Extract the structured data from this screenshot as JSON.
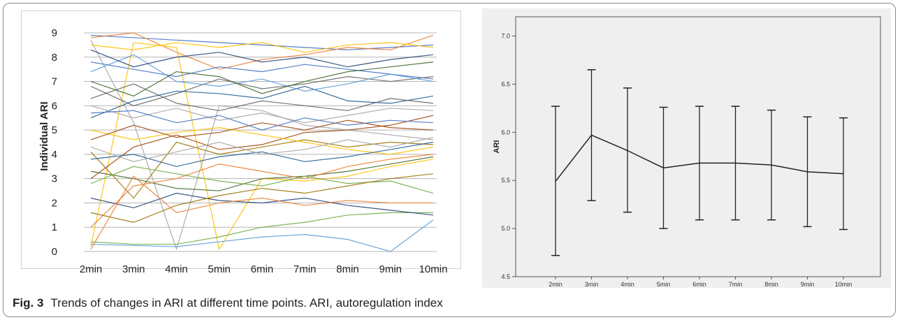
{
  "caption": {
    "label": "Fig. 3",
    "text": "Trends of changes in ARI at different time points. ARI, autoregulation index"
  },
  "chart_data": [
    {
      "type": "line",
      "ylabel": "Individual ARI",
      "xlabel": "",
      "categories": [
        "2min",
        "3min",
        "4min",
        "5min",
        "6min",
        "7min",
        "8min",
        "9min",
        "10min"
      ],
      "ylim": [
        0,
        9
      ],
      "yticks": [
        0,
        1,
        2,
        3,
        4,
        5,
        6,
        7,
        8,
        9
      ],
      "grid": true,
      "legend": "none",
      "colors": [
        "#4472c4",
        "#ed7d31",
        "#a5a5a5",
        "#ffc000",
        "#5b9bd5",
        "#70ad47",
        "#264478",
        "#9e480e",
        "#636363",
        "#997300",
        "#255e91",
        "#43682b"
      ],
      "series": [
        {
          "values": [
            8.9,
            8.8,
            8.7,
            8.6,
            8.5,
            8.4,
            8.3,
            8.4,
            8.5
          ]
        },
        {
          "values": [
            8.8,
            9.0,
            8.2,
            7.5,
            7.9,
            8.1,
            8.4,
            8.3,
            8.9
          ]
        },
        {
          "values": [
            8.7,
            5.3,
            0.1,
            6.0,
            5.8,
            5.2,
            5.0,
            4.8,
            4.6
          ]
        },
        {
          "values": [
            0.2,
            8.6,
            8.4,
            0.1,
            3.0,
            2.9,
            3.1,
            3.5,
            3.8
          ]
        },
        {
          "values": [
            0.3,
            0.25,
            0.2,
            0.4,
            0.6,
            0.7,
            0.5,
            0.0,
            1.3
          ]
        },
        {
          "values": [
            0.4,
            0.3,
            0.3,
            0.6,
            1.0,
            1.2,
            1.5,
            1.6,
            1.6
          ]
        },
        {
          "values": [
            2.2,
            1.8,
            2.4,
            2.1,
            2.0,
            2.2,
            1.9,
            1.7,
            1.5
          ]
        },
        {
          "values": [
            3.0,
            4.3,
            4.8,
            4.2,
            4.4,
            4.9,
            5.0,
            5.2,
            5.6
          ]
        },
        {
          "values": [
            6.8,
            6.0,
            6.5,
            7.1,
            6.7,
            6.9,
            7.2,
            7.0,
            7.2
          ]
        },
        {
          "values": [
            4.1,
            2.2,
            4.5,
            4.0,
            4.3,
            4.6,
            4.3,
            4.5,
            4.4
          ]
        },
        {
          "values": [
            5.5,
            6.2,
            6.6,
            6.5,
            6.3,
            6.8,
            6.2,
            6.1,
            6.4
          ]
        },
        {
          "values": [
            3.3,
            3.0,
            2.6,
            2.5,
            3.0,
            3.1,
            3.3,
            3.6,
            3.9
          ]
        },
        {
          "values": [
            7.8,
            7.5,
            7.2,
            7.6,
            7.4,
            7.7,
            7.5,
            7.3,
            7.1
          ]
        },
        {
          "values": [
            1.0,
            2.7,
            3.0,
            3.6,
            3.3,
            3.0,
            3.5,
            3.8,
            4.0
          ]
        },
        {
          "values": [
            6.0,
            5.5,
            5.9,
            5.4,
            5.7,
            5.3,
            5.6,
            5.9,
            5.8
          ]
        },
        {
          "values": [
            5.0,
            4.6,
            4.9,
            5.1,
            4.8,
            4.5,
            4.2,
            4.0,
            4.3
          ]
        },
        {
          "values": [
            7.4,
            8.1,
            7.0,
            6.8,
            7.1,
            6.6,
            6.9,
            7.3,
            7.0
          ]
        },
        {
          "values": [
            2.8,
            3.5,
            3.2,
            2.9,
            2.7,
            3.1,
            2.8,
            2.9,
            2.4
          ]
        },
        {
          "values": [
            8.3,
            7.6,
            8.0,
            8.2,
            7.8,
            8.0,
            7.6,
            7.9,
            8.1
          ]
        },
        {
          "values": [
            4.6,
            5.2,
            4.7,
            4.9,
            5.3,
            5.0,
            5.4,
            5.1,
            5.0
          ]
        },
        {
          "values": [
            6.3,
            6.9,
            6.1,
            5.8,
            6.2,
            6.0,
            5.8,
            6.3,
            6.1
          ]
        },
        {
          "values": [
            1.6,
            1.2,
            1.9,
            2.3,
            2.6,
            2.4,
            2.7,
            3.0,
            3.2
          ]
        },
        {
          "values": [
            3.8,
            4.0,
            3.5,
            3.9,
            4.1,
            3.7,
            3.9,
            4.2,
            4.5
          ]
        },
        {
          "values": [
            7.0,
            6.4,
            7.4,
            7.2,
            6.5,
            7.0,
            7.4,
            7.6,
            7.8
          ]
        },
        {
          "values": [
            5.7,
            5.8,
            5.3,
            5.6,
            5.0,
            5.5,
            5.2,
            5.4,
            5.3
          ]
        },
        {
          "values": [
            0.1,
            3.1,
            1.6,
            2.0,
            2.2,
            1.9,
            2.1,
            2.0,
            2.0
          ]
        },
        {
          "values": [
            4.3,
            3.7,
            4.1,
            4.5,
            4.0,
            4.2,
            4.6,
            4.3,
            4.7
          ]
        },
        {
          "values": [
            8.5,
            8.3,
            8.6,
            8.4,
            8.6,
            8.2,
            8.5,
            8.6,
            8.4
          ]
        }
      ]
    },
    {
      "type": "line",
      "ylabel": "ARI",
      "xlabel": "",
      "categories": [
        "2min",
        "3min",
        "4min",
        "5min",
        "6min",
        "7min",
        "8min",
        "9min",
        "10min"
      ],
      "values": [
        5.49,
        5.97,
        5.81,
        5.63,
        5.68,
        5.68,
        5.66,
        5.59,
        5.57
      ],
      "error_low": [
        4.72,
        5.29,
        5.17,
        5.0,
        5.09,
        5.09,
        5.09,
        5.02,
        4.99
      ],
      "error_high": [
        6.27,
        6.65,
        6.46,
        6.26,
        6.27,
        6.27,
        6.23,
        6.16,
        6.15
      ],
      "ylim": [
        4.5,
        7.2
      ],
      "yticks": [
        "4.5",
        "5.0",
        "5.5",
        "6.0",
        "6.5",
        "7.0"
      ],
      "grid": false,
      "legend": "none",
      "background": "#efefef"
    }
  ]
}
